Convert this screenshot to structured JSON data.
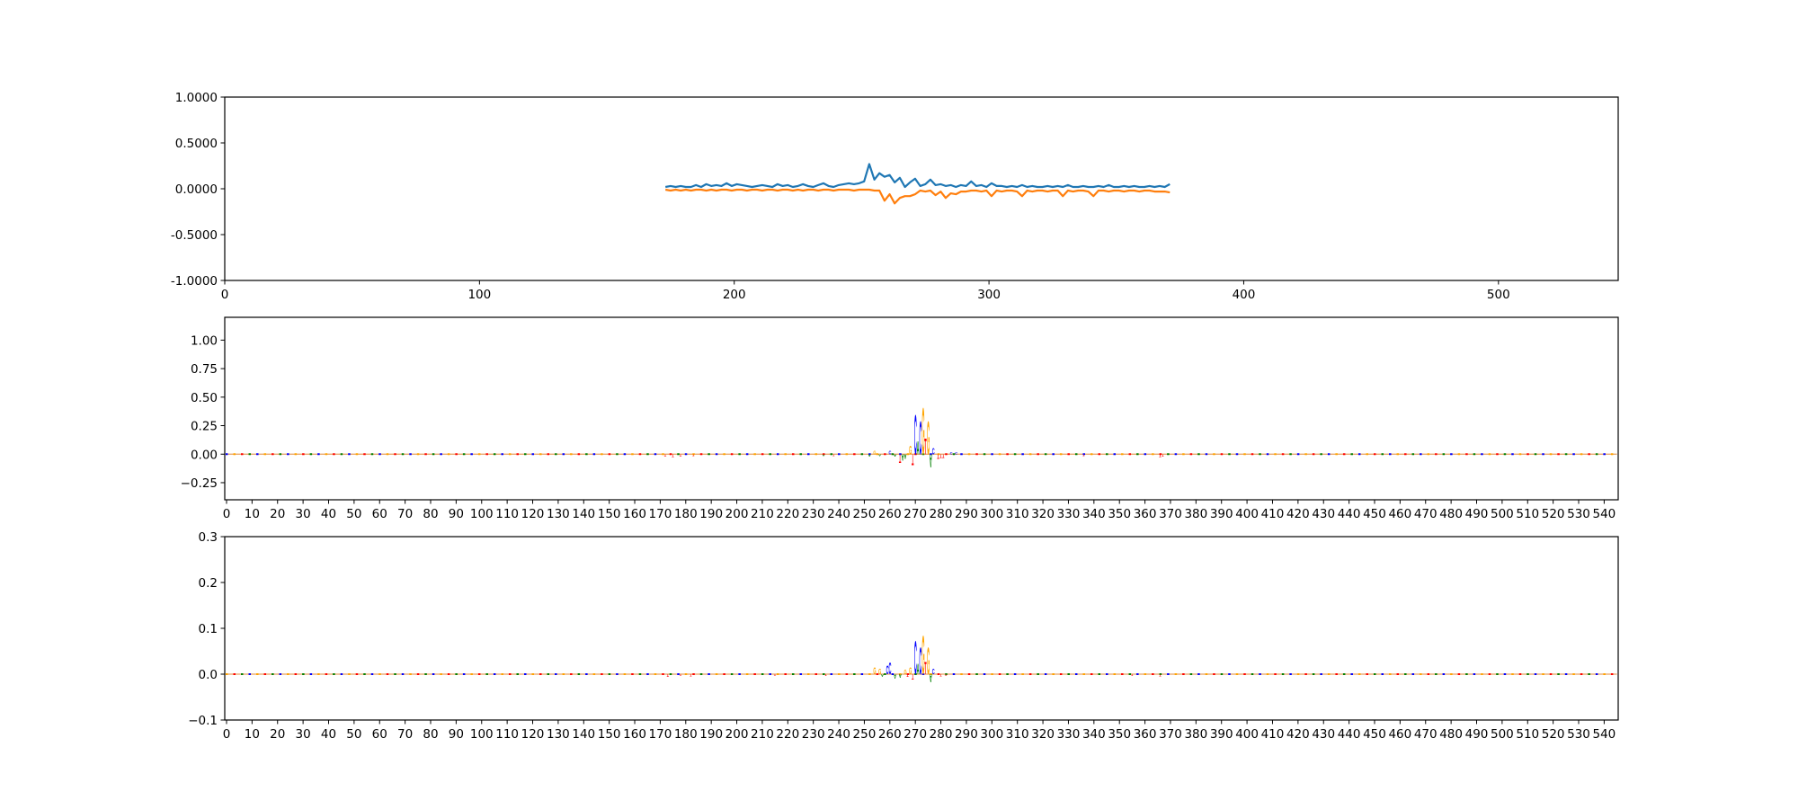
{
  "chart_data": [
    {
      "type": "line",
      "title": "",
      "xlabel": "",
      "ylabel": "",
      "xlim": [
        0,
        547
      ],
      "ylim": [
        -1,
        1
      ],
      "grid": false,
      "xticks": [
        0,
        100,
        200,
        300,
        400,
        500
      ],
      "xtick_labels": [
        "0",
        "100",
        "200",
        "300",
        "400",
        "500"
      ],
      "yticks": [
        1,
        0.5,
        0,
        -0.5,
        -1
      ],
      "ytick_labels": [
        "1.0000",
        "0.5000",
        "0.0000",
        "-0.5000",
        "-1.0000"
      ],
      "x_start": 173,
      "x_step": 2,
      "series": [
        {
          "name": "series-1",
          "color": "#1f77b4",
          "values": [
            0.02,
            0.03,
            0.02,
            0.03,
            0.02,
            0.02,
            0.04,
            0.02,
            0.05,
            0.03,
            0.04,
            0.03,
            0.06,
            0.03,
            0.05,
            0.04,
            0.03,
            0.02,
            0.03,
            0.04,
            0.03,
            0.02,
            0.05,
            0.03,
            0.04,
            0.02,
            0.03,
            0.05,
            0.03,
            0.02,
            0.04,
            0.06,
            0.03,
            0.02,
            0.04,
            0.05,
            0.06,
            0.05,
            0.06,
            0.08,
            0.27,
            0.1,
            0.17,
            0.13,
            0.15,
            0.07,
            0.12,
            0.02,
            0.07,
            0.11,
            0.03,
            0.05,
            0.1,
            0.04,
            0.05,
            0.03,
            0.04,
            0.02,
            0.04,
            0.03,
            0.08,
            0.03,
            0.04,
            0.02,
            0.06,
            0.03,
            0.03,
            0.02,
            0.03,
            0.02,
            0.04,
            0.02,
            0.03,
            0.02,
            0.02,
            0.03,
            0.02,
            0.03,
            0.02,
            0.04,
            0.02,
            0.02,
            0.03,
            0.02,
            0.02,
            0.03,
            0.02,
            0.04,
            0.02,
            0.02,
            0.03,
            0.02,
            0.03,
            0.02,
            0.02,
            0.03,
            0.02,
            0.03,
            0.02,
            0.05
          ]
        },
        {
          "name": "series-2",
          "color": "#ff7f0e",
          "values": [
            -0.01,
            -0.02,
            -0.01,
            -0.02,
            -0.01,
            -0.02,
            -0.01,
            -0.01,
            -0.02,
            -0.01,
            -0.02,
            -0.01,
            -0.01,
            -0.02,
            -0.01,
            -0.01,
            -0.02,
            -0.01,
            -0.01,
            -0.02,
            -0.01,
            -0.01,
            -0.02,
            -0.01,
            -0.01,
            -0.02,
            -0.01,
            -0.02,
            -0.01,
            -0.01,
            -0.02,
            -0.01,
            -0.01,
            -0.02,
            -0.01,
            -0.01,
            -0.01,
            -0.02,
            -0.01,
            -0.01,
            -0.01,
            -0.02,
            -0.02,
            -0.13,
            -0.06,
            -0.16,
            -0.1,
            -0.08,
            -0.08,
            -0.06,
            -0.02,
            -0.03,
            -0.02,
            -0.07,
            -0.03,
            -0.1,
            -0.05,
            -0.06,
            -0.03,
            -0.03,
            -0.02,
            -0.02,
            -0.03,
            -0.02,
            -0.08,
            -0.02,
            -0.03,
            -0.02,
            -0.02,
            -0.03,
            -0.08,
            -0.02,
            -0.03,
            -0.02,
            -0.02,
            -0.03,
            -0.02,
            -0.02,
            -0.08,
            -0.02,
            -0.03,
            -0.02,
            -0.02,
            -0.03,
            -0.08,
            -0.02,
            -0.02,
            -0.03,
            -0.02,
            -0.02,
            -0.03,
            -0.02,
            -0.02,
            -0.03,
            -0.02,
            -0.02,
            -0.03,
            -0.03,
            -0.03,
            -0.04
          ]
        }
      ]
    },
    {
      "type": "logo",
      "title": "",
      "xlabel": "",
      "ylabel": "",
      "xlim": [
        -0.7,
        545.5
      ],
      "ylim": [
        -0.4,
        1.2
      ],
      "grid": false,
      "ytick_labels": [
        [
          "1.00",
          1
        ],
        [
          "0.75",
          0.75
        ],
        [
          "0.50",
          0.5
        ],
        [
          "0.25",
          0.25
        ],
        [
          "0.00",
          0
        ],
        [
          "−0.25",
          -0.25
        ]
      ],
      "xtick_step": 10,
      "xtick_max": 540,
      "base_colors": {
        "A": "#008000",
        "C": "#0000ff",
        "G": "#ffa500",
        "T": "#ff0000"
      },
      "letters": [
        [
          172,
          "T",
          -0.02
        ],
        [
          175,
          "T",
          -0.025
        ],
        [
          178,
          "T",
          -0.02
        ],
        [
          183,
          "T",
          -0.015
        ],
        [
          234,
          "A",
          -0.015
        ],
        [
          238,
          "T",
          -0.015
        ],
        [
          252,
          "A",
          -0.02
        ],
        [
          254,
          "G",
          0.03
        ],
        [
          256,
          "A",
          -0.015
        ],
        [
          260,
          "C",
          0.03
        ],
        [
          262,
          "A",
          -0.02
        ],
        [
          264,
          "T",
          -0.08
        ],
        [
          265,
          "A",
          -0.06
        ],
        [
          266,
          "A",
          -0.04
        ],
        [
          268,
          "G",
          0.08
        ],
        [
          269,
          "T",
          -0.1
        ],
        [
          270,
          "C",
          0.36
        ],
        [
          271,
          "A",
          0.12
        ],
        [
          272,
          "C",
          0.3
        ],
        [
          273,
          "G",
          0.42
        ],
        [
          274,
          "T",
          0.14
        ],
        [
          275,
          "G",
          0.3
        ],
        [
          276,
          "A",
          -0.12
        ],
        [
          277,
          "C",
          0.06
        ],
        [
          279,
          "T",
          -0.04
        ],
        [
          280,
          "T",
          -0.03
        ],
        [
          281,
          "T",
          -0.03
        ],
        [
          284,
          "C",
          0.02
        ],
        [
          286,
          "C",
          0.02
        ],
        [
          336,
          "T",
          -0.015
        ],
        [
          366,
          "T",
          -0.025
        ],
        [
          367,
          "T",
          -0.02
        ]
      ]
    },
    {
      "type": "logo",
      "title": "",
      "xlabel": "",
      "ylabel": "",
      "xlim": [
        -0.7,
        545.5
      ],
      "ylim": [
        -0.1,
        0.3
      ],
      "grid": false,
      "ytick_labels": [
        [
          "0.3",
          0.3
        ],
        [
          "0.2",
          0.2
        ],
        [
          "0.1",
          0.1
        ],
        [
          "0.0",
          0
        ],
        [
          "−0.1",
          -0.1
        ]
      ],
      "xtick_step": 10,
      "xtick_max": 540,
      "base_colors": {
        "A": "#008000",
        "C": "#0000ff",
        "G": "#ffa500",
        "T": "#ff0000"
      },
      "letters": [
        [
          173,
          "T",
          -0.006
        ],
        [
          178,
          "T",
          -0.004
        ],
        [
          182,
          "T",
          -0.005
        ],
        [
          215,
          "T",
          -0.004
        ],
        [
          235,
          "T",
          -0.004
        ],
        [
          254,
          "G",
          0.015
        ],
        [
          256,
          "G",
          0.012
        ],
        [
          257,
          "A",
          -0.006
        ],
        [
          259,
          "C",
          0.02
        ],
        [
          260,
          "C",
          0.026
        ],
        [
          262,
          "A",
          -0.01
        ],
        [
          264,
          "A",
          -0.008
        ],
        [
          266,
          "G",
          0.01
        ],
        [
          267,
          "T",
          -0.006
        ],
        [
          268,
          "G",
          0.016
        ],
        [
          269,
          "T",
          -0.012
        ],
        [
          270,
          "C",
          0.074
        ],
        [
          271,
          "A",
          0.024
        ],
        [
          272,
          "C",
          0.06
        ],
        [
          273,
          "G",
          0.086
        ],
        [
          274,
          "T",
          0.028
        ],
        [
          275,
          "G",
          0.06
        ],
        [
          276,
          "A",
          -0.018
        ],
        [
          277,
          "C",
          0.012
        ],
        [
          280,
          "T",
          -0.005
        ],
        [
          282,
          "T",
          -0.004
        ],
        [
          355,
          "T",
          -0.004
        ],
        [
          366,
          "T",
          -0.005
        ]
      ]
    }
  ]
}
